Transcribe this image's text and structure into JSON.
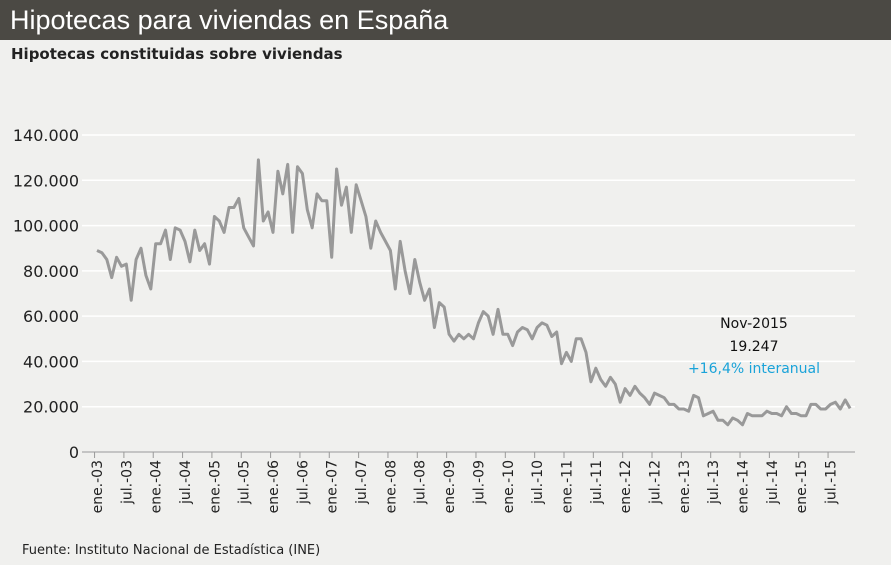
{
  "header": {
    "title": "Hipotecas para viviendas en España"
  },
  "subtitle": "Hipotecas constituidas sobre viviendas",
  "source": "Fuente: Instituto Nacional  de Estadística (INE)",
  "annotation": {
    "period": "Nov-2015",
    "value": "19.247",
    "change": "+16,4% interanual",
    "change_color": "#1aa3d9"
  },
  "chart_data": {
    "type": "line",
    "title": "Hipotecas constituidas sobre viviendas",
    "xlabel": "",
    "ylabel": "",
    "ylim": [
      0,
      140000
    ],
    "yticks": [
      "0",
      "20.000",
      "40.000",
      "60.000",
      "80.000",
      "100.000",
      "120.000",
      "140.000"
    ],
    "grid": true,
    "line_color": "#999999",
    "xticks": [
      "ene.-03",
      "jul.-03",
      "ene.-04",
      "jul.-04",
      "ene.-05",
      "jul.-05",
      "ene.-06",
      "jul.-06",
      "ene.-07",
      "jul.-07",
      "ene.-08",
      "jul.-08",
      "ene.-09",
      "jul.-09",
      "ene.-10",
      "jul.-10",
      "ene.-11",
      "jul.-11",
      "ene.-12",
      "jul.-12",
      "ene.-13",
      "jul.-13",
      "ene.-14",
      "jul.-14",
      "ene.-15",
      "jul.-15"
    ],
    "x_start": "ene.-03",
    "x_end": "nov.-15",
    "series": [
      {
        "values": [
          89000,
          88000,
          85000,
          77000,
          86000,
          82000,
          83000,
          67000,
          85000,
          90000,
          78000,
          72000,
          92000,
          92000,
          98000,
          85000,
          99000,
          98000,
          93000,
          84000,
          98000,
          89000,
          92000,
          83000,
          104000,
          102000,
          97000,
          108000,
          108000,
          112000,
          99000,
          95000,
          91000,
          129000,
          102000,
          106000,
          97000,
          124000,
          114000,
          127000,
          97000,
          126000,
          123000,
          107000,
          99000,
          114000,
          111000,
          111000,
          86000,
          125000,
          109000,
          117000,
          97000,
          118000,
          111000,
          104000,
          90000,
          102000,
          97000,
          93000,
          89000,
          72000,
          93000,
          80000,
          70000,
          85000,
          75000,
          67000,
          72000,
          55000,
          66000,
          64000,
          52000,
          49000,
          52000,
          50000,
          52000,
          50000,
          57000,
          62000,
          60000,
          52000,
          63000,
          52000,
          52000,
          47000,
          53000,
          55000,
          54000,
          50000,
          55000,
          57000,
          56000,
          51000,
          53000,
          39000,
          44000,
          40000,
          50000,
          50000,
          44000,
          31000,
          37000,
          32000,
          29000,
          33000,
          30000,
          22000,
          28000,
          25000,
          29000,
          26000,
          24000,
          21000,
          26000,
          25000,
          24000,
          21000,
          21000,
          19000,
          19000,
          18000,
          25000,
          24000,
          16000,
          17000,
          18000,
          14000,
          14000,
          12000,
          15000,
          14000,
          12000,
          17000,
          16000,
          16000,
          16000,
          18000,
          17000,
          17000,
          16000,
          20000,
          17000,
          17000,
          16000,
          16000,
          21000,
          21000,
          19000,
          19000,
          21000,
          22000,
          19000,
          23000,
          19247
        ]
      }
    ]
  }
}
